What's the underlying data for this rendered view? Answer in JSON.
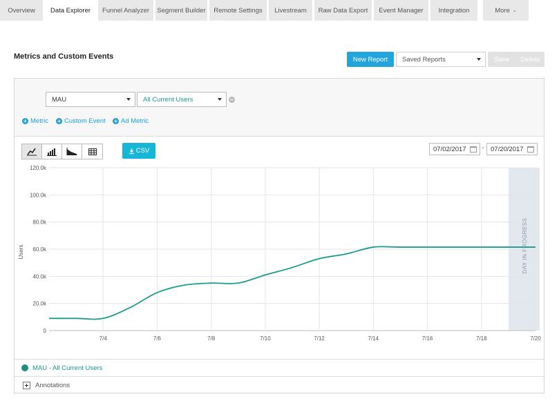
{
  "nav": {
    "tabs": [
      {
        "label": "Overview",
        "active": false
      },
      {
        "label": "Data Explorer",
        "active": true
      },
      {
        "label": "Funnel Analyzer",
        "active": false
      },
      {
        "label": "Segment Builder",
        "active": false
      },
      {
        "label": "Remote Settings",
        "active": false
      },
      {
        "label": "Livestream",
        "active": false
      },
      {
        "label": "Raw Data Export",
        "active": false
      },
      {
        "label": "Event Manager",
        "active": false
      },
      {
        "label": "Integration",
        "active": false
      },
      {
        "label": "More",
        "active": false
      }
    ]
  },
  "header": {
    "title": "Metrics and Custom Events",
    "new_report": "New Report",
    "saved_reports": "Saved Reports",
    "save": "Save",
    "delete": "Delete"
  },
  "config": {
    "metric_select": "MAU",
    "segment_select": "All Current Users",
    "add_metric": "Metric",
    "add_custom_event": "Custom Event",
    "add_ad_metric": "Ad Metric"
  },
  "toolbar": {
    "csv": "CSV",
    "date_from": "07/02/2017",
    "date_to": "07/20/2017",
    "date_separator": "-"
  },
  "chart_data": {
    "type": "line",
    "ylabel": "Users",
    "ylim": [
      0,
      120000
    ],
    "yticks": [
      "0",
      "20.0k",
      "40.0k",
      "60.0k",
      "80.0k",
      "100.0k",
      "120.0k"
    ],
    "xticks": [
      "7/4",
      "7/6",
      "7/8",
      "7/10",
      "7/12",
      "7/14",
      "7/16",
      "7/18",
      "7/20"
    ],
    "annotation": "DAY IN PROGRESS",
    "series": [
      {
        "name": "MAU - All Current Users",
        "color": "#1a9b8c",
        "x": [
          "7/2",
          "7/3",
          "7/4",
          "7/5",
          "7/6",
          "7/7",
          "7/8",
          "7/9",
          "7/10",
          "7/11",
          "7/12",
          "7/13",
          "7/14",
          "7/15",
          "7/16",
          "7/17",
          "7/18",
          "7/19",
          "7/20"
        ],
        "values": [
          9000,
          9000,
          9000,
          17000,
          28000,
          33500,
          35000,
          35000,
          41000,
          46500,
          53000,
          56500,
          61500,
          61500,
          61500,
          61500,
          61500,
          61500,
          61500
        ]
      }
    ]
  },
  "legend": {
    "label": "MAU - All Current Users"
  },
  "annotations": {
    "label": "Annotations"
  }
}
